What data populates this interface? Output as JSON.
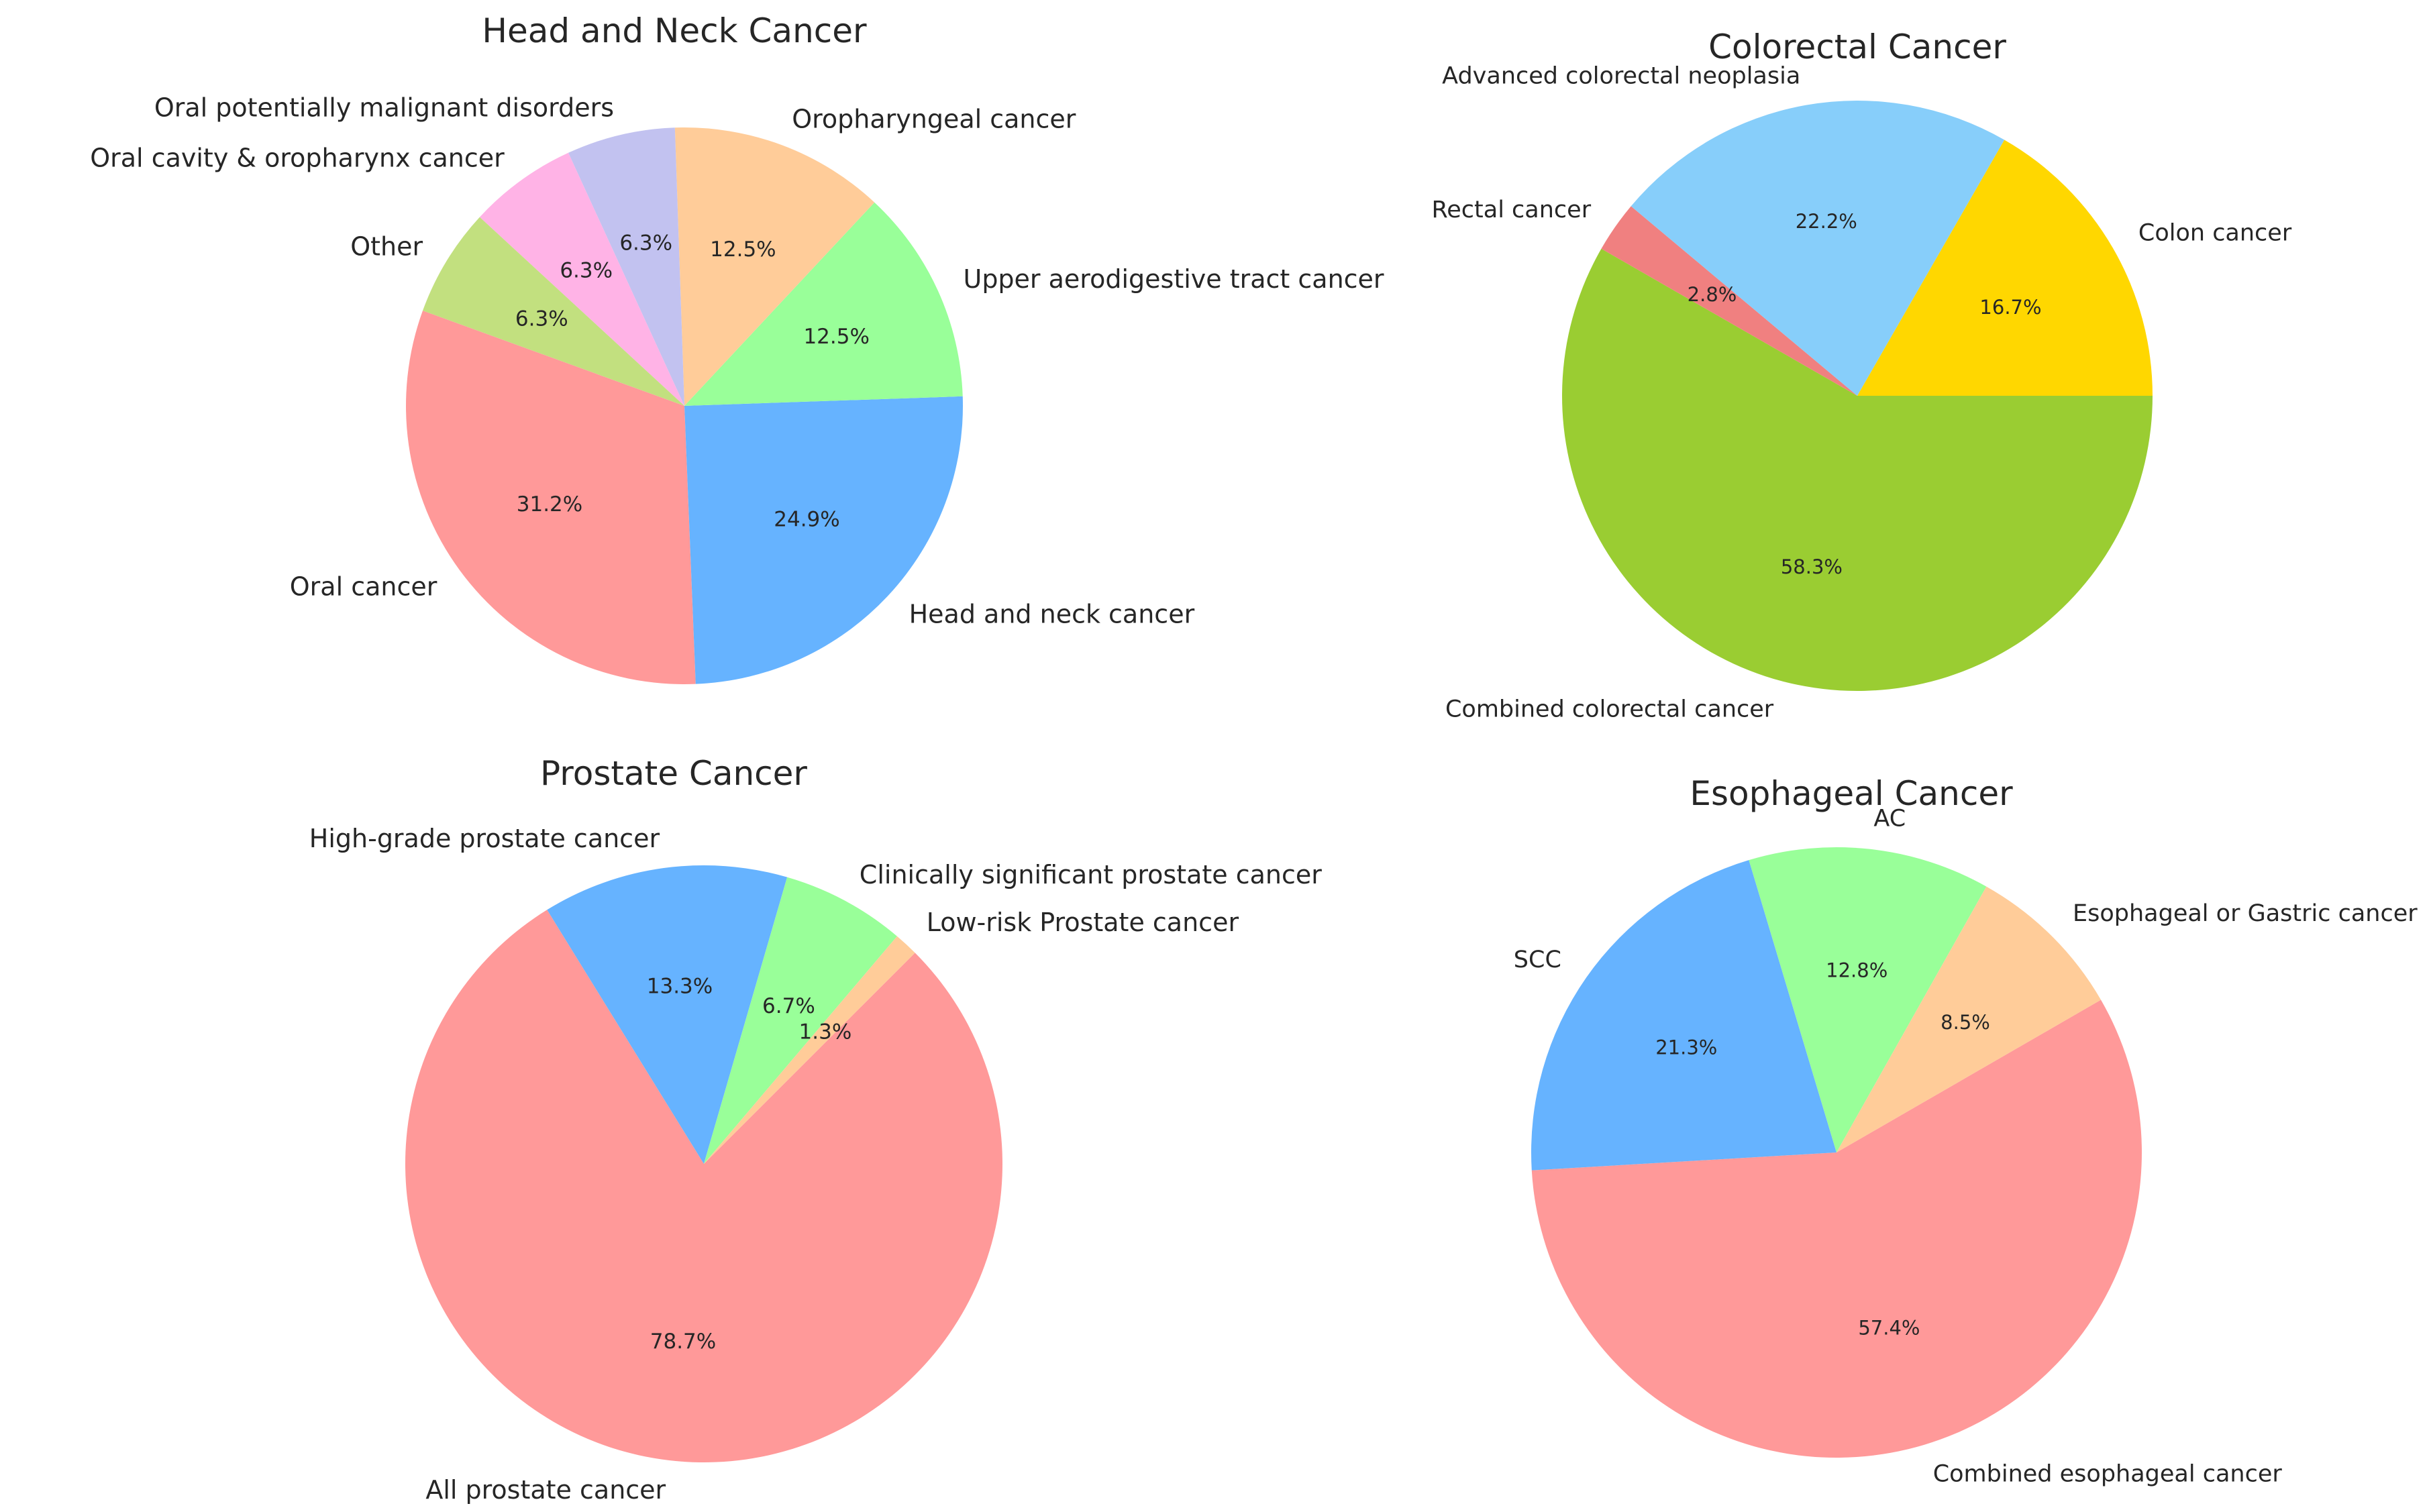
{
  "chart_data": [
    {
      "type": "pie",
      "title": "Head and Neck Cancer",
      "slices": [
        {
          "label": "Oral cancer",
          "value": 31.2,
          "pct_label": "31.2%",
          "color": "#ff9999"
        },
        {
          "label": "Head and neck cancer",
          "value": 24.9,
          "pct_label": "24.9%",
          "color": "#66b3ff"
        },
        {
          "label": "Upper aerodigestive tract cancer",
          "value": 12.5,
          "pct_label": "12.5%",
          "color": "#99ff99"
        },
        {
          "label": "Oropharyngeal cancer",
          "value": 12.5,
          "pct_label": "12.5%",
          "color": "#ffcc99"
        },
        {
          "label": "Oral potentially malignant disorders",
          "value": 6.3,
          "pct_label": "6.3%",
          "color": "#c2c2f0"
        },
        {
          "label": "Oral cavity & oropharynx cancer",
          "value": 6.3,
          "pct_label": "6.3%",
          "color": "#ffb3e6"
        },
        {
          "label": "Other",
          "value": 6.3,
          "pct_label": "6.3%",
          "color": "#c2e07f"
        }
      ]
    },
    {
      "type": "pie",
      "title": "Colorectal Cancer",
      "slices": [
        {
          "label": "Combined colorectal cancer",
          "value": 58.3,
          "pct_label": "58.3%",
          "color": "#9acd32"
        },
        {
          "label": "Rectal cancer",
          "value": 2.8,
          "pct_label": "2.8%",
          "color": "#f08080"
        },
        {
          "label": "Advanced colorectal neoplasia",
          "value": 22.2,
          "pct_label": "22.2%",
          "color": "#87cefa"
        },
        {
          "label": "Colon cancer",
          "value": 16.7,
          "pct_label": "16.7%",
          "color": "#ffd700"
        }
      ]
    },
    {
      "type": "pie",
      "title": "Prostate Cancer",
      "slices": [
        {
          "label": "All prostate cancer",
          "value": 78.7,
          "pct_label": "78.7%",
          "color": "#ff9999"
        },
        {
          "label": "High-grade prostate cancer",
          "value": 13.3,
          "pct_label": "13.3%",
          "color": "#66b3ff"
        },
        {
          "label": "Clinically significant prostate cancer",
          "value": 6.7,
          "pct_label": "6.7%",
          "color": "#99ff99"
        },
        {
          "label": "Low-risk Prostate cancer",
          "value": 1.3,
          "pct_label": "1.3%",
          "color": "#ffcc99"
        }
      ]
    },
    {
      "type": "pie",
      "title": "Esophageal Cancer",
      "slices": [
        {
          "label": "Combined esophageal cancer",
          "value": 57.4,
          "pct_label": "57.4%",
          "color": "#ff9999"
        },
        {
          "label": "SCC",
          "value": 21.3,
          "pct_label": "21.3%",
          "color": "#66b3ff"
        },
        {
          "label": "AC",
          "value": 12.8,
          "pct_label": "12.8%",
          "color": "#99ff99"
        },
        {
          "label": "Esophageal or Gastric cancer",
          "value": 8.5,
          "pct_label": "8.5%",
          "color": "#ffcc99"
        }
      ]
    }
  ]
}
